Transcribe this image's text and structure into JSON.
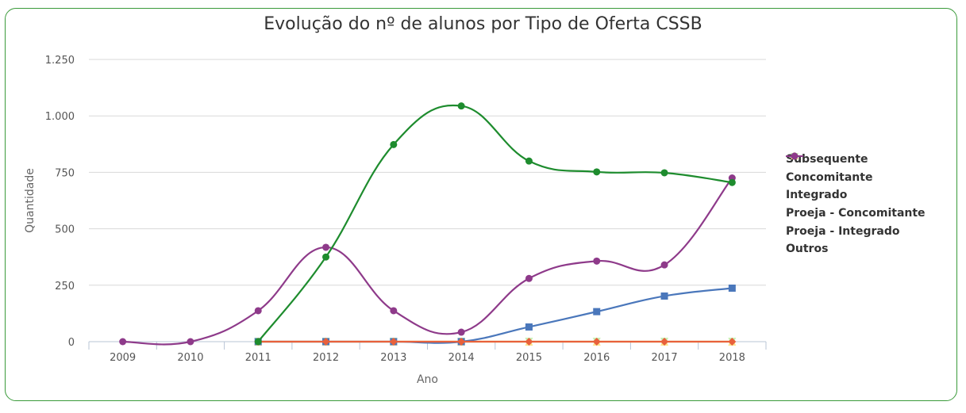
{
  "chart_data": {
    "type": "line",
    "title": "Evolução do nº de alunos por Tipo de Oferta CSSB",
    "xlabel": "Ano",
    "ylabel": "Quantidade",
    "categories": [
      "2009",
      "2010",
      "2011",
      "2012",
      "2013",
      "2014",
      "2015",
      "2016",
      "2017",
      "2018"
    ],
    "ylim": [
      0,
      1250
    ],
    "yticks": [
      0,
      250,
      500,
      750,
      1000,
      1250
    ],
    "ytick_labels": [
      "0",
      "250",
      "500",
      "750",
      "1.000",
      "1.250"
    ],
    "grid": true,
    "legend_position": "right",
    "series": [
      {
        "name": "Subsequente",
        "color": "#1e8c2e",
        "marker": "circle",
        "values": [
          null,
          null,
          0,
          375,
          873,
          1044,
          800,
          752,
          748,
          705
        ]
      },
      {
        "name": "Concomitante",
        "color": "#e8613c",
        "marker": "diamond",
        "values": [
          null,
          null,
          0,
          0,
          0,
          0,
          0,
          0,
          0,
          0
        ]
      },
      {
        "name": "Integrado",
        "color": "#4a77bb",
        "marker": "square",
        "values": [
          null,
          null,
          0,
          0,
          0,
          0,
          65,
          133,
          202,
          237
        ]
      },
      {
        "name": "Proeja - Concomitante",
        "color": "#fde28a",
        "marker": "triangle",
        "values": [
          null,
          null,
          0,
          0,
          0,
          0,
          0,
          0,
          0,
          0
        ]
      },
      {
        "name": "Proeja - Integrado",
        "color": "#c9f0b4",
        "marker": "triangle-down",
        "values": [
          null,
          null,
          0,
          0,
          0,
          0,
          0,
          0,
          0,
          0
        ]
      },
      {
        "name": "Outros",
        "color": "#8e3a8a",
        "marker": "circle",
        "values": [
          0,
          0,
          137,
          418,
          137,
          42,
          280,
          357,
          340,
          725
        ]
      }
    ]
  }
}
